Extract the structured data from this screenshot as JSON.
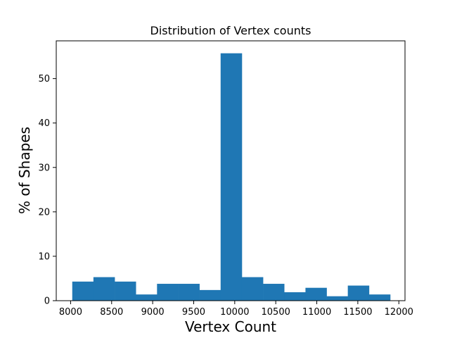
{
  "chart_data": {
    "type": "bar",
    "title": "Distribution of Vertex counts",
    "xlabel": "Vertex Count",
    "ylabel": "% of Shapes",
    "xlim": [
      7825,
      12075
    ],
    "ylim": [
      0,
      58.5
    ],
    "xticks": [
      8000,
      8500,
      9000,
      9500,
      10000,
      10500,
      11000,
      11500,
      12000
    ],
    "yticks": [
      0,
      10,
      20,
      30,
      40,
      50
    ],
    "bar_color": "#1f77b4",
    "bin_edges": [
      8020,
      8278,
      8537,
      8795,
      9053,
      9312,
      9570,
      9828,
      10087,
      10345,
      10603,
      10862,
      11120,
      11378,
      11637,
      11895
    ],
    "values": [
      4.3,
      5.3,
      4.3,
      1.4,
      3.8,
      3.8,
      2.4,
      55.7,
      5.3,
      3.8,
      1.9,
      2.9,
      1.0,
      3.4,
      1.4
    ],
    "grid": false,
    "legend": "none"
  }
}
